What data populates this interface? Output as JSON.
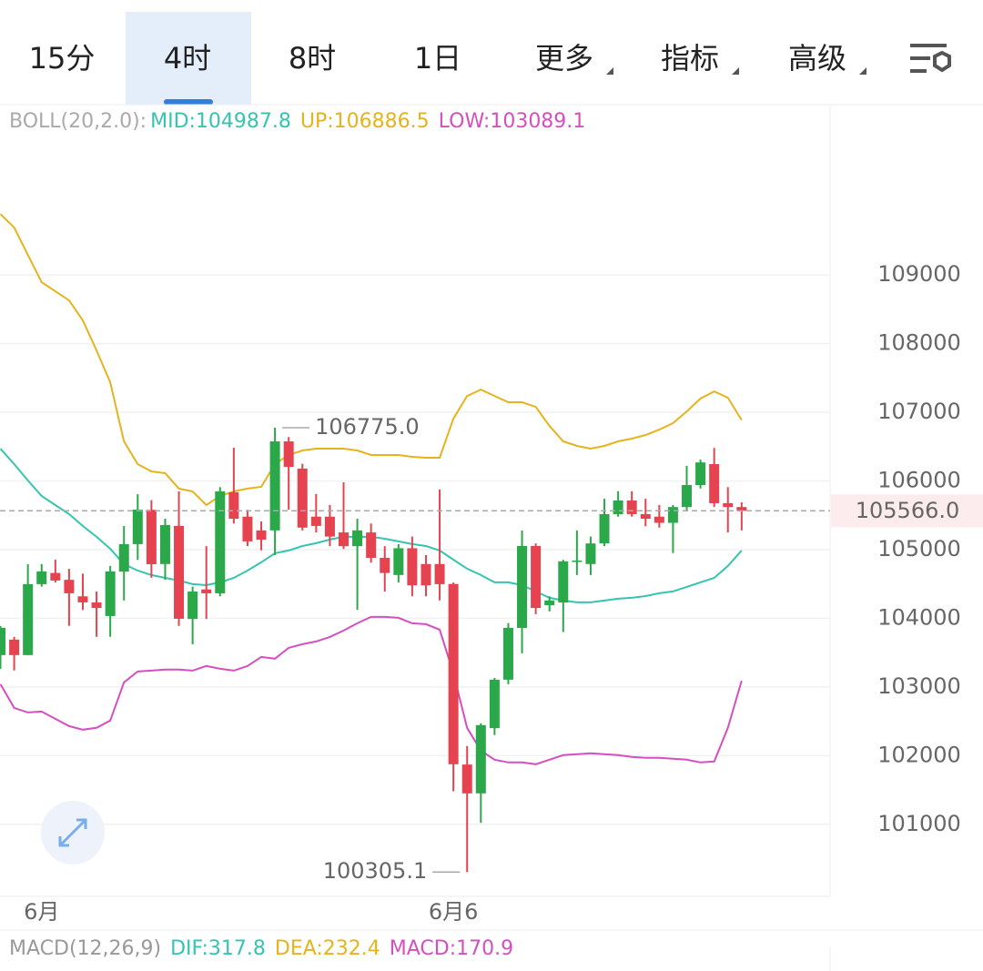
{
  "tabs": [
    "15分",
    "4时",
    "8时",
    "1日",
    "更多",
    "指标",
    "高级"
  ],
  "active_tab": 1,
  "chart_data": {
    "type": "candlestick",
    "indicator_label": "BOLL(20,2.0):",
    "categories": [
      null,
      null,
      null,
      "6月",
      null,
      null,
      null,
      null,
      null,
      null,
      null,
      null,
      null,
      null,
      null,
      null,
      null,
      null,
      null,
      null,
      null,
      null,
      null,
      null,
      null,
      null,
      null,
      null,
      null,
      null,
      null,
      null,
      null,
      "6月6",
      null,
      null,
      null,
      null,
      null,
      null,
      null,
      null,
      null,
      null,
      null,
      null,
      null,
      null,
      null,
      null,
      null,
      null,
      null,
      null,
      null
    ],
    "open": [
      103464,
      103689,
      103464,
      104497,
      104660,
      104560,
      104320,
      104230,
      104033,
      104680,
      105080,
      105580,
      104790,
      105345,
      103990,
      104420,
      104364,
      105835,
      105480,
      105280,
      105280,
      106576,
      106180,
      105480,
      105480,
      105250,
      105050,
      105250,
      104880,
      104630,
      105020,
      104790,
      104790,
      104500,
      101870,
      101450,
      102400,
      103106,
      103860,
      105053,
      104190,
      104230,
      104830,
      104790,
      105090,
      105517,
      105715,
      105517,
      105480,
      105390,
      105620,
      105940,
      106245,
      105676,
      105620
    ],
    "high": [
      103888,
      103730,
      104788,
      104790,
      104854,
      104720,
      104650,
      104390,
      104760,
      105344,
      105808,
      105720,
      105450,
      105850,
      104460,
      105050,
      105910,
      106483,
      105580,
      105410,
      106775,
      106640,
      106250,
      105810,
      105650,
      105980,
      105450,
      105380,
      105050,
      105080,
      105190,
      104920,
      105874,
      104520,
      102140,
      102470,
      103130,
      103930,
      105278,
      105090,
      104320,
      104850,
      105280,
      105190,
      105740,
      105850,
      105850,
      105740,
      105650,
      105650,
      106220,
      106310,
      106480,
      105910,
      105690
    ],
    "low": [
      103265,
      103240,
      103460,
      104460,
      104520,
      103890,
      104120,
      103730,
      103730,
      104260,
      104850,
      104590,
      104560,
      103890,
      103620,
      103990,
      104320,
      105380,
      105050,
      104990,
      104920,
      105580,
      105280,
      105250,
      105050,
      105010,
      104125,
      104810,
      104390,
      104520,
      104320,
      104320,
      104260,
      101480,
      100305.1,
      101020,
      102300,
      103040,
      103490,
      104060,
      104100,
      103800,
      104630,
      104630,
      105050,
      105480,
      105480,
      105340,
      105320,
      104950,
      105560,
      105890,
      105620,
      105250,
      105280
    ],
    "close": [
      103861,
      103464,
      104497,
      104682,
      104550,
      104364,
      104232,
      104150,
      104682,
      105080,
      105583,
      104788,
      105358,
      103993,
      104390,
      104364,
      105848,
      105450,
      105120,
      105145,
      106576,
      106205,
      105320,
      105345,
      105190,
      105050,
      105280,
      104880,
      104660,
      105020,
      104480,
      104480,
      104497,
      101874,
      101450,
      102444,
      103106,
      103861,
      105053,
      104150,
      104260,
      104830,
      104840,
      105090,
      105517,
      105715,
      105517,
      105450,
      105390,
      105620,
      105940,
      106270,
      105676,
      105620,
      105566
    ],
    "up_color": "#2aa84a",
    "down_color": "#e5434f",
    "series": [
      {
        "name": "MID:104987.8",
        "color": "#35c4b0",
        "values": [
          106470,
          106245,
          106007,
          105781,
          105649,
          105517,
          105344,
          105186,
          105013,
          104788,
          104695,
          104629,
          104589,
          104550,
          104497,
          104483,
          104523,
          104589,
          104695,
          104815,
          104947,
          104987,
          105053,
          105093,
          105146,
          105186,
          105186,
          105186,
          105159,
          105120,
          105080,
          105053,
          104987,
          104854,
          104722,
          104629,
          104523,
          104523,
          104483,
          104391,
          104298,
          104258,
          104232,
          104232,
          104258,
          104285,
          104298,
          104324,
          104364,
          104391,
          104457,
          104523,
          104589,
          104762,
          104987.8
        ]
      },
      {
        "name": "UP:106886.5",
        "color": "#e6b31e",
        "values": [
          109887,
          109689,
          109291,
          108894,
          108762,
          108629,
          108338,
          107901,
          107437,
          106576,
          106245,
          106139,
          106113,
          105888,
          105848,
          105649,
          105781,
          105848,
          105888,
          105914,
          106245,
          106377,
          106444,
          106470,
          106470,
          106470,
          106444,
          106377,
          106377,
          106377,
          106351,
          106338,
          106338,
          106907,
          107238,
          107331,
          107238,
          107146,
          107146,
          107079,
          106801,
          106576,
          106510,
          106470,
          106510,
          106576,
          106616,
          106669,
          106748,
          106841,
          107013,
          107199,
          107304,
          107212,
          106886.5
        ]
      },
      {
        "name": "LOW:103089.1",
        "color": "#d54fbf",
        "values": [
          103040,
          102695,
          102629,
          102642,
          102536,
          102430,
          102378,
          102404,
          102510,
          103066,
          103225,
          103238,
          103252,
          103252,
          103238,
          103305,
          103265,
          103238,
          103305,
          103437,
          103411,
          103570,
          103623,
          103662,
          103729,
          103821,
          103927,
          104020,
          104020,
          104007,
          103927,
          103914,
          103834,
          103199,
          102404,
          102073,
          101940,
          101901,
          101901,
          101874,
          101940,
          102007,
          102020,
          102033,
          102020,
          102007,
          101980,
          101967,
          101967,
          101954,
          101940,
          101901,
          101914,
          102404,
          103089.1
        ]
      }
    ],
    "ylim": [
      99950,
      111480
    ],
    "yticks": [
      101000,
      102000,
      103000,
      104000,
      105000,
      106000,
      107000,
      108000,
      109000
    ],
    "grid": true,
    "price_line": {
      "value": 105566,
      "label": "105566.0"
    },
    "annotations": [
      {
        "value": 106775,
        "label": "106775.0",
        "index": 20
      },
      {
        "value": 100305.1,
        "label": "100305.1",
        "index": 34
      }
    ]
  },
  "macd": {
    "label": "MACD(12,26,9)",
    "entries": [
      {
        "text": "DIF:317.8",
        "color": "#35c4b0"
      },
      {
        "text": "DEA:232.4",
        "color": "#e6b31e"
      },
      {
        "text": "MACD:170.9",
        "color": "#d54fbf"
      }
    ]
  }
}
